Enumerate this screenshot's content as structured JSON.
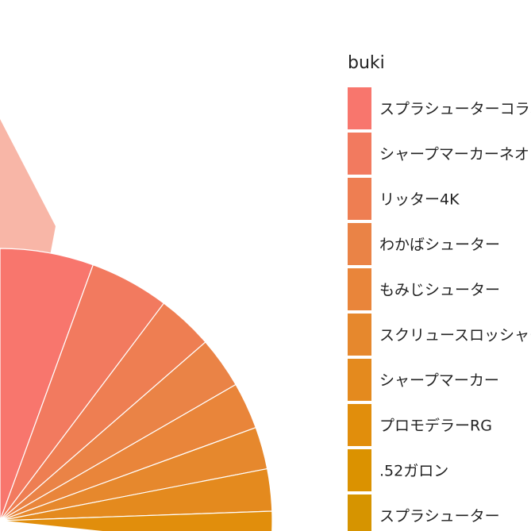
{
  "chart_data": {
    "type": "pie",
    "legend": {
      "title": "buki",
      "placement": "right"
    },
    "slices": [
      {
        "label": "スプラシューターコラボ",
        "color": "#F8766D"
      },
      {
        "label": "シャープマーカーネオ",
        "color": "#F27A5F"
      },
      {
        "label": "リッター4K",
        "color": "#EE7E52"
      },
      {
        "label": "わかばシューター",
        "color": "#EA8346"
      },
      {
        "label": "もみじシューター",
        "color": "#E9853A"
      },
      {
        "label": "スクリュースロッシャー",
        "color": "#E6882D"
      },
      {
        "label": "シャープマーカー",
        "color": "#E48A1E"
      },
      {
        "label": "プロモデラーRG",
        "color": "#E18E0C"
      },
      {
        "label": ".52ガロン",
        "color": "#DB9200"
      },
      {
        "label": "スプラシューター",
        "color": "#D69400"
      }
    ]
  }
}
